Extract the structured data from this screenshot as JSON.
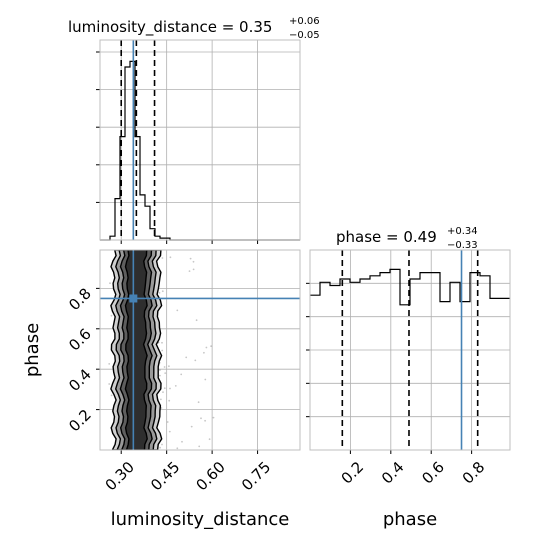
{
  "chart_data": {
    "type": "corner",
    "grid": true,
    "truth_color": "#4682b4",
    "quantile_color": "#000000",
    "params": [
      {
        "name": "luminosity_distance",
        "axis_label": "luminosity_distance",
        "title_main": "luminosity_distance = 0.35",
        "title_sup": "+0.06",
        "title_sub": "−0.05",
        "median": 0.35,
        "plus": 0.06,
        "minus": 0.05,
        "range": [
          0.23,
          0.89
        ],
        "ticks": [
          0.3,
          0.45,
          0.6,
          0.75
        ],
        "tick_labels": [
          "0.30",
          "0.45",
          "0.60",
          "0.75"
        ],
        "quantiles": [
          0.3,
          0.35,
          0.41
        ],
        "truth": 0.34,
        "hist": {
          "edges_start": 0.23,
          "bin_width": 0.0165,
          "counts": [
            0,
            0,
            2,
            22,
            55,
            92,
            95,
            55,
            24,
            18,
            6,
            2,
            1,
            1,
            0,
            0,
            0,
            0,
            0,
            0,
            0,
            0,
            0,
            0,
            0,
            0,
            0,
            0,
            0,
            0,
            0,
            0,
            0,
            0,
            0,
            0,
            0,
            0,
            0,
            0
          ]
        }
      },
      {
        "name": "phase",
        "axis_label": "phase",
        "title_main": "phase = 0.49",
        "title_sup": "+0.34",
        "title_sub": "−0.33",
        "median": 0.49,
        "plus": 0.34,
        "minus": 0.33,
        "range": [
          0.0,
          0.99
        ],
        "ticks": [
          0.2,
          0.4,
          0.6,
          0.8
        ],
        "tick_labels": [
          "0.2",
          "0.4",
          "0.6",
          "0.8"
        ],
        "quantiles": [
          0.16,
          0.49,
          0.83
        ],
        "truth": 0.75,
        "hist": {
          "edges_start": 0.0,
          "bin_width": 0.02475,
          "counts": [
            48,
            48,
            52,
            52,
            51,
            51,
            53,
            53,
            52,
            52,
            53,
            53,
            54,
            54,
            55,
            55,
            56,
            56,
            45,
            45,
            53,
            53,
            55,
            55,
            55,
            55,
            46,
            46,
            52,
            52,
            46,
            46,
            55,
            55,
            54,
            54,
            47,
            47,
            47,
            47
          ]
        }
      }
    ],
    "scatter_2d": {
      "x_param": "luminosity_distance",
      "y_param": "phase",
      "truth_point": [
        0.34,
        0.75
      ]
    }
  }
}
